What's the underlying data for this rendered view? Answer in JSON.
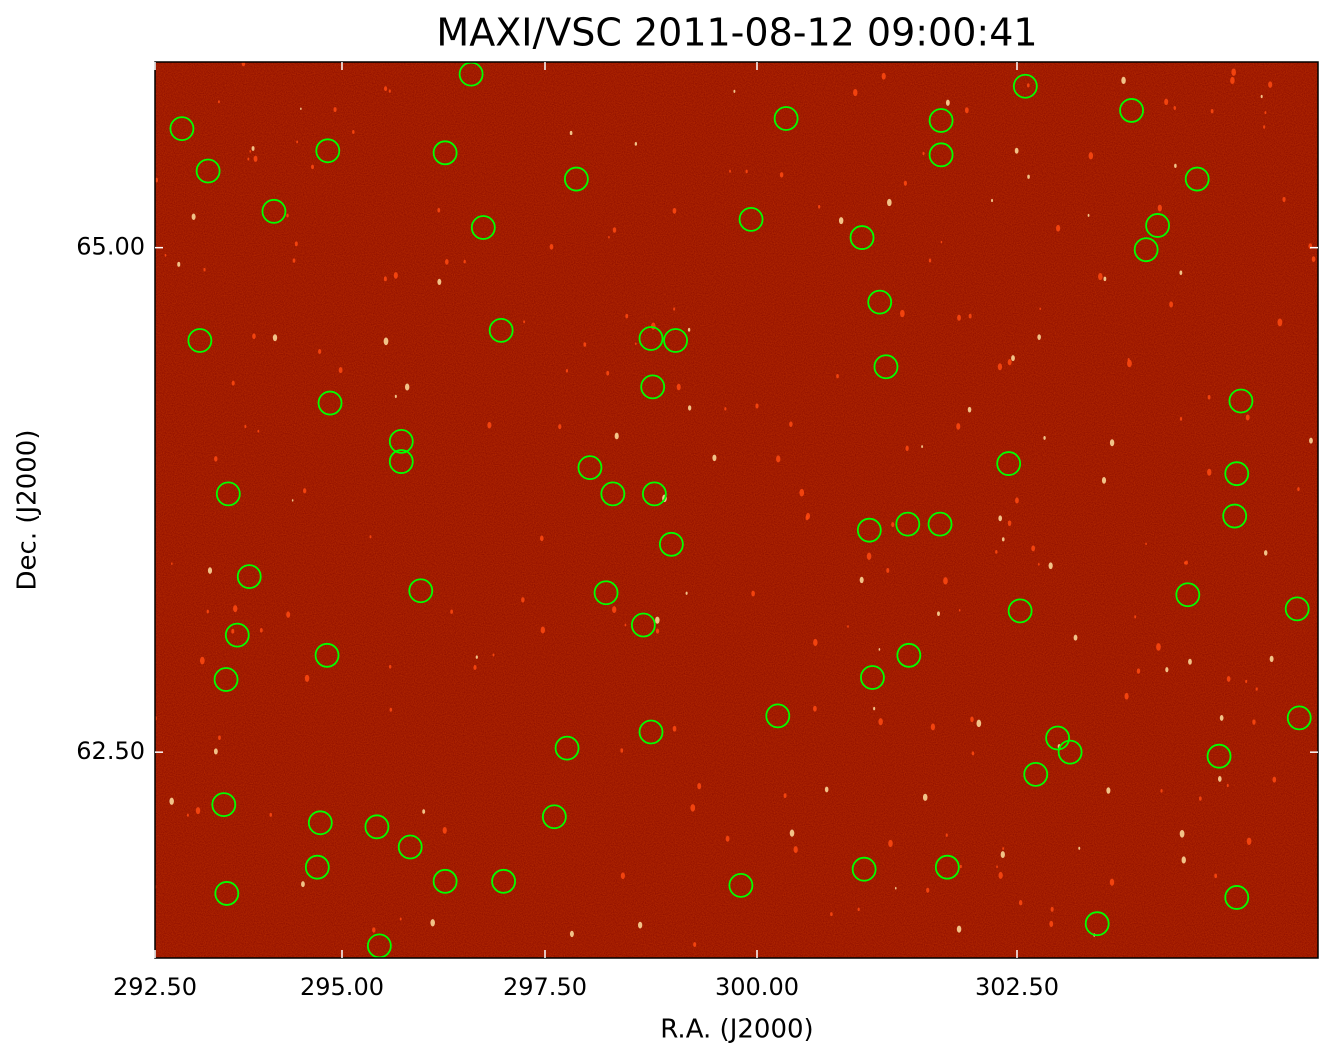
{
  "chart_data": {
    "type": "scatter",
    "title": "MAXI/VSC 2011-08-12 09:00:41",
    "xlabel": "R.A. (J2000)",
    "ylabel": "Dec. (J2000)",
    "xlim": [
      292.5,
      305.39
    ],
    "ylim": [
      61.48,
      65.92
    ],
    "xticks": [
      {
        "value": 292.5,
        "label": "292.50"
      },
      {
        "value": 295,
        "label": "295.00"
      },
      {
        "value": 297.5,
        "label": "297.50"
      },
      {
        "value": 300,
        "label": "300.00"
      },
      {
        "value": 302.5,
        "label": "302.50"
      }
    ],
    "yticks": [
      {
        "value": 62.5,
        "label": "62.50"
      },
      {
        "value": 65,
        "label": "65.00"
      }
    ],
    "color": "#00ff00",
    "background": "#8a0a00",
    "x": [
      296.59,
      302.58,
      292.86,
      300.28,
      301.77,
      303.6,
      294.81,
      296.27,
      293.21,
      301.77,
      297.87,
      304.23,
      294.09,
      299.93,
      296.74,
      301.01,
      303.85,
      303.74,
      301.18,
      296.96,
      293.1,
      298.75,
      299.04,
      301.24,
      298.77,
      294.84,
      304.65,
      295.73,
      295.73,
      298.03,
      302.42,
      293.48,
      298.3,
      298.79,
      304.61,
      301.08,
      301.45,
      301.76,
      304.59,
      298.99,
      293.76,
      295.97,
      298.22,
      304.14,
      302.53,
      305.19,
      293.6,
      298.66,
      294.8,
      301.46,
      293.45,
      301.11,
      300.2,
      305.21,
      298.75,
      297.76,
      302.89,
      303.01,
      304.44,
      302.68,
      293.42,
      294.71,
      295.43,
      297.61,
      295.84,
      294.67,
      301.03,
      301.83,
      296.27,
      296.99,
      299.81,
      293.46,
      304.61,
      303.27,
      295.46
    ],
    "y": [
      65.86,
      65.8,
      65.59,
      65.64,
      65.63,
      65.68,
      65.48,
      65.47,
      65.38,
      65.46,
      65.34,
      65.34,
      65.18,
      65.14,
      65.1,
      65.05,
      65.11,
      64.99,
      64.73,
      64.59,
      64.54,
      64.55,
      64.54,
      64.41,
      64.31,
      64.23,
      64.24,
      64.04,
      63.94,
      63.91,
      63.93,
      63.78,
      63.78,
      63.78,
      63.88,
      63.6,
      63.63,
      63.63,
      63.67,
      63.53,
      63.37,
      63.3,
      63.29,
      63.28,
      63.2,
      63.21,
      63.08,
      63.13,
      62.98,
      62.98,
      62.86,
      62.87,
      62.68,
      62.67,
      62.6,
      62.52,
      62.57,
      62.5,
      62.48,
      62.39,
      62.24,
      62.15,
      62.13,
      62.18,
      62.03,
      61.93,
      61.92,
      61.93,
      61.86,
      61.86,
      61.84,
      61.8,
      61.78,
      61.65,
      61.54
    ]
  }
}
